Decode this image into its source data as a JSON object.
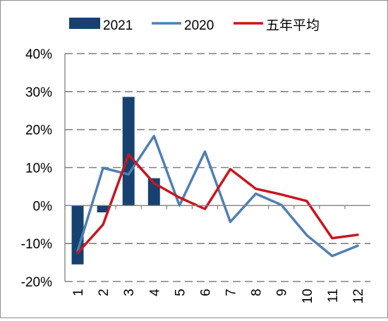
{
  "chart_data": {
    "type": "bar+line",
    "categories": [
      "1",
      "2",
      "3",
      "4",
      "5",
      "6",
      "7",
      "8",
      "9",
      "10",
      "11",
      "12"
    ],
    "y_ticks": [
      "40%",
      "30%",
      "20%",
      "10%",
      "0%",
      "-10%",
      "-20%"
    ],
    "ylim": [
      -20,
      40
    ],
    "y_unit": "%",
    "grid": true,
    "legend_position": "top",
    "series": [
      {
        "name": "2021",
        "kind": "bar",
        "color": "#17426f",
        "values": [
          -15.5,
          -1.8,
          28.6,
          7.2,
          null,
          null,
          null,
          null,
          null,
          null,
          null,
          null
        ]
      },
      {
        "name": "2020",
        "kind": "line",
        "color": "#4f7fb3",
        "values": [
          -12.0,
          9.9,
          8.2,
          18.3,
          0.0,
          14.2,
          -4.3,
          3.1,
          0.2,
          -7.8,
          -13.3,
          -10.6
        ]
      },
      {
        "name": "五年平均",
        "kind": "line",
        "color": "#c8161e",
        "values": [
          -12.5,
          -5.0,
          13.4,
          5.9,
          2.1,
          -0.9,
          9.6,
          4.4,
          2.9,
          1.2,
          -8.6,
          -7.7
        ]
      }
    ]
  }
}
